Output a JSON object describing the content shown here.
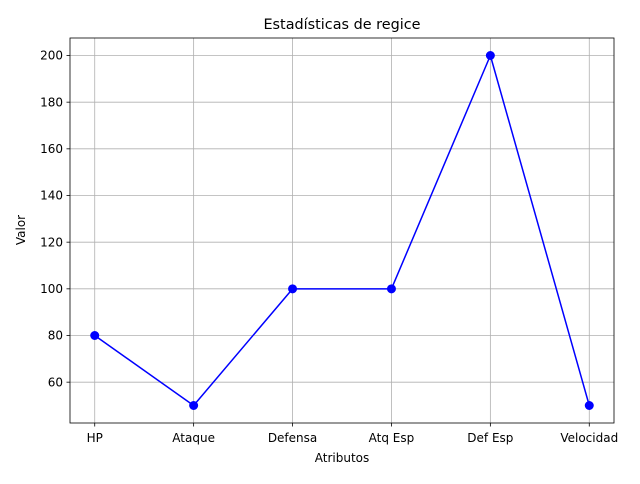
{
  "chart_data": {
    "type": "line",
    "title": "Estadísticas de regice",
    "xlabel": "Atributos",
    "ylabel": "Valor",
    "categories": [
      "HP",
      "Ataque",
      "Defensa",
      "Atq Esp",
      "Def Esp",
      "Velocidad"
    ],
    "series": [
      {
        "values": [
          80,
          50,
          100,
          100,
          200,
          50
        ],
        "color": "#0000ff",
        "marker": "circle"
      }
    ],
    "ylim": [
      42.5,
      207.5
    ],
    "yticks": [
      60,
      80,
      100,
      120,
      140,
      160,
      180,
      200
    ],
    "grid": true,
    "grid_color": "#b0b0b0",
    "legend": false
  }
}
